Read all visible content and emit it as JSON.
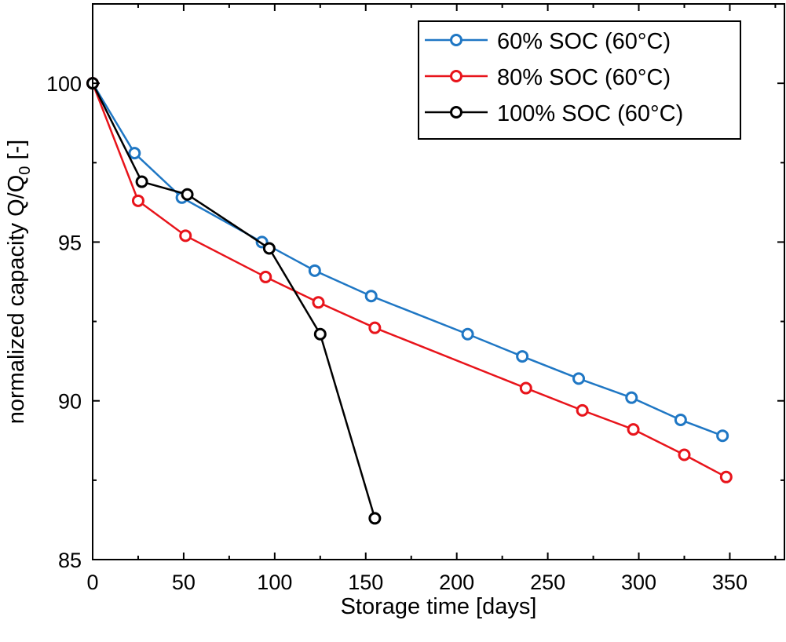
{
  "chart_data": {
    "type": "line",
    "title": "",
    "xlabel": "Storage time [days]",
    "ylabel_main": "normalized capacity Q/Q",
    "ylabel_sub": "0",
    "ylabel_tail": " [-]",
    "xlim": [
      0,
      380
    ],
    "ylim": [
      85,
      102.5
    ],
    "xticks": [
      0,
      50,
      100,
      150,
      200,
      250,
      300,
      350
    ],
    "yticks": [
      85,
      90,
      95,
      100
    ],
    "xtick_labels": [
      "0",
      "50",
      "100",
      "150",
      "200",
      "250",
      "300",
      "350"
    ],
    "ytick_labels": [
      "85",
      "90",
      "95",
      "100"
    ],
    "grid": false,
    "legend_position": "top-right",
    "series": [
      {
        "name": "60% SOC (60°C)",
        "color": "#1f77c4",
        "marker": "open-circle",
        "x": [
          0,
          23,
          49,
          93,
          122,
          153,
          206,
          236,
          267,
          296,
          323,
          346
        ],
        "y": [
          100.0,
          97.8,
          96.4,
          95.0,
          94.1,
          93.3,
          92.1,
          91.4,
          90.7,
          90.1,
          89.4,
          88.9
        ]
      },
      {
        "name": "80% SOC (60°C)",
        "color": "#e8141b",
        "marker": "open-circle",
        "x": [
          0,
          25,
          51,
          95,
          124,
          155,
          238,
          269,
          297,
          325,
          348
        ],
        "y": [
          100.0,
          96.3,
          95.2,
          93.9,
          93.1,
          92.3,
          90.4,
          89.7,
          89.1,
          88.3,
          87.6
        ]
      },
      {
        "name": "100% SOC (60°C)",
        "color": "#000000",
        "marker": "open-circle",
        "x": [
          0,
          27,
          52,
          97,
          125,
          155
        ],
        "y": [
          100.0,
          96.9,
          96.5,
          94.8,
          92.1,
          86.3
        ]
      }
    ]
  }
}
